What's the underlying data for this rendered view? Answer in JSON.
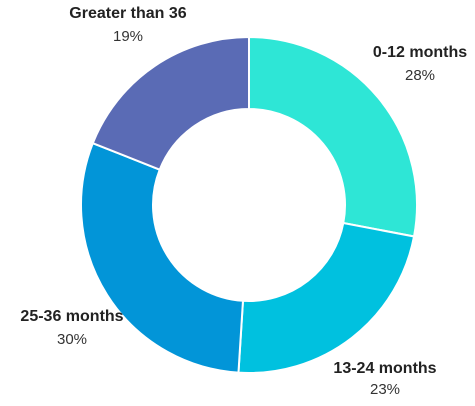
{
  "chart_data": {
    "type": "pie",
    "donut": true,
    "categories": [
      "0-12 months",
      "13-24 months",
      "25-36 months",
      "Greater than 36"
    ],
    "values": [
      28,
      23,
      30,
      19
    ],
    "value_labels": [
      "28%",
      "23%",
      "30%",
      "19%"
    ],
    "colors": [
      "#2ee6d6",
      "#00c1df",
      "#0295d8",
      "#5a6bb5"
    ],
    "legend": "none",
    "title": ""
  }
}
